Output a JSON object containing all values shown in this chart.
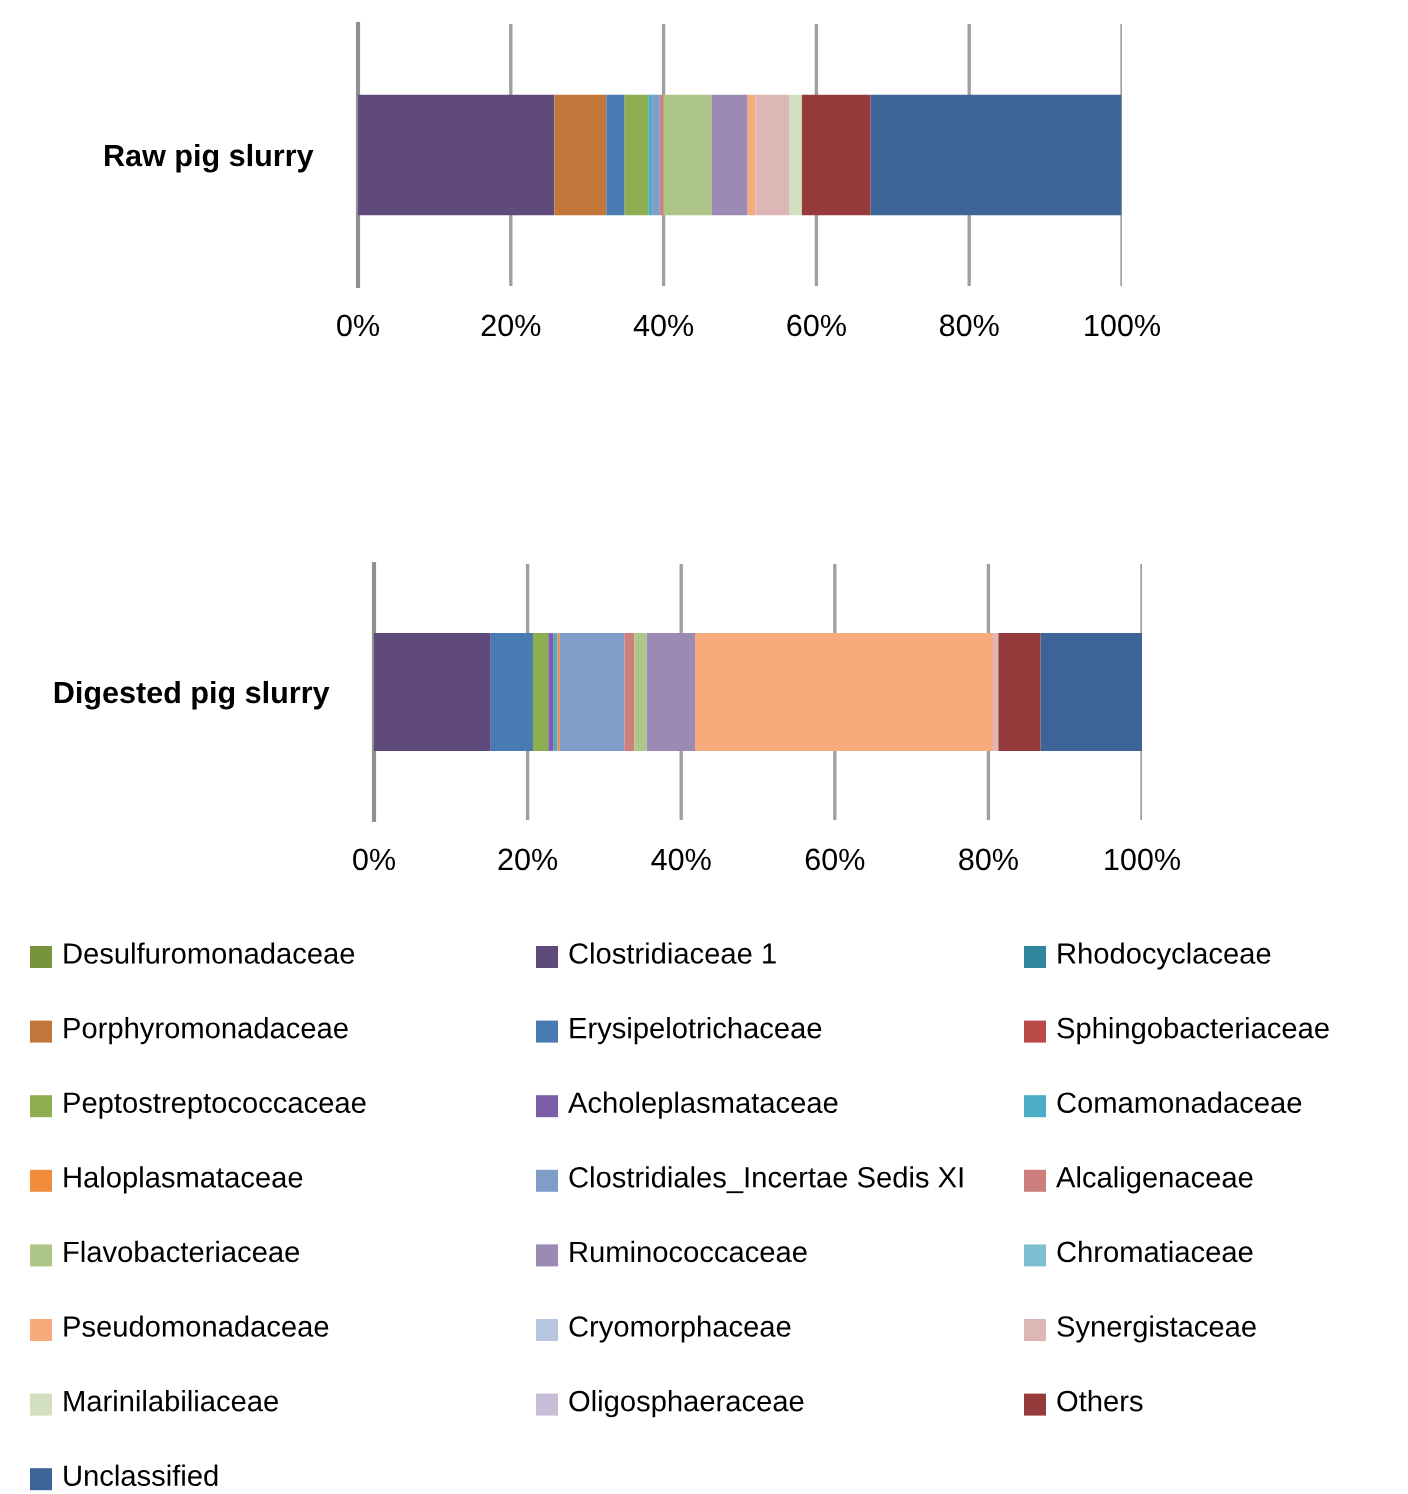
{
  "chart_data": [
    {
      "type": "bar",
      "stacked": true,
      "orientation": "horizontal",
      "categories": [
        "Raw pig slurry"
      ],
      "xlim": [
        0,
        100
      ],
      "xticks": [
        {
          "value": 0,
          "label": "0%"
        },
        {
          "value": 20,
          "label": "20%"
        },
        {
          "value": 40,
          "label": "40%"
        },
        {
          "value": 60,
          "label": "60%"
        },
        {
          "value": 80,
          "label": "80%"
        },
        {
          "value": 100,
          "label": "100%"
        }
      ],
      "grid": "x",
      "legend": "bottom",
      "series": [
        {
          "name": "Desulfuromonadaceae",
          "color": "#77933c",
          "values": [
            0
          ]
        },
        {
          "name": "Clostridiaceae 1",
          "color": "#604a7b",
          "values": [
            25.7
          ]
        },
        {
          "name": "Rhodocyclaceae",
          "color": "#31859c",
          "values": [
            0
          ]
        },
        {
          "name": "Porphyromonadaceae",
          "color": "#c3763a",
          "values": [
            6.8
          ]
        },
        {
          "name": "Erysipelotrichaceae",
          "color": "#4a7ab2",
          "values": [
            2.4
          ]
        },
        {
          "name": "Sphingobacteriaceae",
          "color": "#b94a48",
          "values": [
            0
          ]
        },
        {
          "name": "Peptostreptococcaceae",
          "color": "#8fae52",
          "values": [
            3.1
          ]
        },
        {
          "name": "Acholeplasmataceae",
          "color": "#7b5ea7",
          "values": [
            0
          ]
        },
        {
          "name": "Comamonadaceae",
          "color": "#4aacc6",
          "values": [
            0.5
          ]
        },
        {
          "name": "Haloplasmataceae",
          "color": "#f08c3c",
          "values": [
            0
          ]
        },
        {
          "name": "Clostridiales_Incertae Sedis XI",
          "color": "#7f9dc8",
          "values": [
            1.0
          ]
        },
        {
          "name": "Alcaligenaceae",
          "color": "#cd7f7d",
          "values": [
            0.5
          ]
        },
        {
          "name": "Flavobacteriaceae",
          "color": "#adc688",
          "values": [
            6.3
          ]
        },
        {
          "name": "Ruminococcaceae",
          "color": "#9b8ab3",
          "values": [
            4.7
          ]
        },
        {
          "name": "Chromatiaceae",
          "color": "#7dbfd1",
          "values": [
            0
          ]
        },
        {
          "name": "Pseudomonadaceae",
          "color": "#f6ab7c",
          "values": [
            1.0
          ]
        },
        {
          "name": "Cryomorphaceae",
          "color": "#b7c7e1",
          "values": [
            0
          ]
        },
        {
          "name": "Synergistaceae",
          "color": "#ddb6b6",
          "values": [
            4.5
          ]
        },
        {
          "name": "Marinilabiliaceae",
          "color": "#d3e0bf",
          "values": [
            1.6
          ]
        },
        {
          "name": "Oligosphaeraceae",
          "color": "#c7bdd6",
          "values": [
            0
          ]
        },
        {
          "name": "Others",
          "color": "#953b3b",
          "values": [
            9.0
          ]
        },
        {
          "name": "Unclassified",
          "color": "#3c6496",
          "values": [
            32.8
          ]
        }
      ]
    },
    {
      "type": "bar",
      "stacked": true,
      "orientation": "horizontal",
      "categories": [
        "Digested pig slurry"
      ],
      "xlim": [
        0,
        100
      ],
      "xticks": [
        {
          "value": 0,
          "label": "0%"
        },
        {
          "value": 20,
          "label": "20%"
        },
        {
          "value": 40,
          "label": "40%"
        },
        {
          "value": 60,
          "label": "60%"
        },
        {
          "value": 80,
          "label": "80%"
        },
        {
          "value": 100,
          "label": "100%"
        }
      ],
      "grid": "x",
      "series": [
        {
          "color": "#77933c",
          "values": [
            0
          ]
        },
        {
          "color": "#604a7b",
          "values": [
            15.2
          ]
        },
        {
          "color": "#31859c",
          "values": [
            0
          ]
        },
        {
          "color": "#c3763a",
          "values": [
            0
          ]
        },
        {
          "color": "#4a7ab2",
          "values": [
            5.5
          ]
        },
        {
          "color": "#b94a48",
          "values": [
            0
          ]
        },
        {
          "color": "#8fae52",
          "values": [
            2.0
          ]
        },
        {
          "color": "#7b5ea7",
          "values": [
            0.7
          ]
        },
        {
          "color": "#4aacc6",
          "values": [
            0.5
          ]
        },
        {
          "color": "#f08c3c",
          "values": [
            0.3
          ]
        },
        {
          "color": "#7f9dc8",
          "values": [
            8.4
          ]
        },
        {
          "color": "#cd7f7d",
          "values": [
            1.3
          ]
        },
        {
          "color": "#adc688",
          "values": [
            1.6
          ]
        },
        {
          "color": "#9b8ab3",
          "values": [
            6.3
          ]
        },
        {
          "color": "#7dbfd1",
          "values": [
            0
          ]
        },
        {
          "color": "#f6ab7c",
          "values": [
            38.8
          ]
        },
        {
          "color": "#b7c7e1",
          "values": [
            0
          ]
        },
        {
          "color": "#ddb6b6",
          "values": [
            0.7
          ]
        },
        {
          "color": "#d3e0bf",
          "values": [
            0
          ]
        },
        {
          "color": "#c7bdd6",
          "values": [
            0
          ]
        },
        {
          "color": "#953b3b",
          "values": [
            5.5
          ]
        },
        {
          "color": "#3c6496",
          "values": [
            13.2
          ]
        }
      ]
    }
  ]
}
